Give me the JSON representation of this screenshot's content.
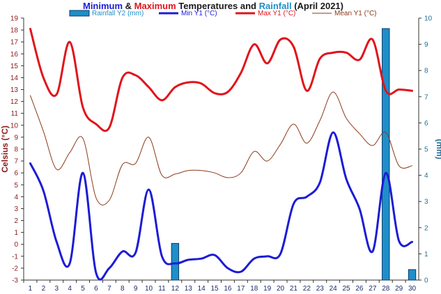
{
  "chart_data": {
    "type": "line",
    "title_parts": [
      {
        "text": "Minimum",
        "color": "#1c1cd6"
      },
      {
        "text": " & ",
        "color": "#1a1a1a"
      },
      {
        "text": "Maximum",
        "color": "#e0141c"
      },
      {
        "text": " Temperatures and ",
        "color": "#1a1a1a"
      },
      {
        "text": "Rainfall",
        "color": "#1f8fc9"
      },
      {
        "text": " (April 2021)",
        "color": "#1a1a1a"
      }
    ],
    "ylabel_left": "Celsius (°C)",
    "ylabel_right": "(mm)",
    "left_axis": {
      "min": -3,
      "max": 19,
      "step": 1,
      "color": "#8b1a1a"
    },
    "right_axis": {
      "min": 0,
      "max": 10,
      "step": 1,
      "color": "#1f6f9a"
    },
    "x": [
      1,
      2,
      3,
      4,
      5,
      6,
      7,
      8,
      9,
      10,
      11,
      12,
      13,
      14,
      15,
      16,
      17,
      18,
      19,
      20,
      21,
      22,
      23,
      24,
      25,
      26,
      27,
      28,
      29,
      30
    ],
    "x_color": "#1a2a6a",
    "legend_position": "top",
    "grid": false,
    "series": [
      {
        "name": "Rainfall Y2 (mm)",
        "kind": "bar",
        "axis": "right",
        "color": "#1f8fc9",
        "values": [
          0,
          0,
          0,
          0,
          0,
          0,
          0,
          0,
          0,
          0,
          0,
          1.4,
          0,
          0,
          0,
          0,
          0,
          0,
          0,
          0,
          0,
          0,
          0,
          0,
          0,
          0,
          0,
          9.6,
          0,
          0.4
        ]
      },
      {
        "name": "Min Y1 (°C)",
        "kind": "line",
        "axis": "left",
        "color": "#1c1cd6",
        "width": 3,
        "values": [
          6.8,
          4.5,
          0.2,
          -1.6,
          6.0,
          -2.4,
          -2.0,
          -0.6,
          -0.7,
          4.6,
          -1.0,
          -1.6,
          -1.3,
          -1.2,
          -0.9,
          -2.0,
          -2.3,
          -1.2,
          -1.0,
          -0.8,
          3.4,
          4.0,
          5.2,
          9.4,
          5.5,
          3.0,
          -0.6,
          6.0,
          0.3,
          0.2
        ]
      },
      {
        "name": "Max Y1 (°C)",
        "kind": "line",
        "axis": "left",
        "color": "#e0141c",
        "width": 3,
        "values": [
          18.1,
          14.0,
          12.6,
          17.0,
          11.5,
          10.1,
          9.8,
          14.0,
          14.2,
          13.2,
          12.1,
          13.2,
          13.6,
          13.5,
          12.7,
          12.8,
          14.4,
          16.8,
          15.2,
          17.2,
          16.6,
          12.9,
          15.6,
          16.1,
          16.1,
          15.5,
          17.2,
          12.9,
          13.0,
          12.9
        ]
      },
      {
        "name": "Mean Y1 (°C)",
        "kind": "line",
        "axis": "left",
        "color": "#8b3a1a",
        "width": 1,
        "values": [
          12.5,
          9.5,
          6.3,
          7.7,
          8.9,
          3.9,
          3.7,
          6.7,
          6.8,
          9.0,
          5.8,
          5.9,
          6.2,
          6.2,
          6.0,
          5.6,
          6.0,
          7.8,
          7.0,
          8.4,
          10.1,
          8.5,
          10.4,
          12.8,
          10.6,
          9.3,
          8.3,
          9.4,
          6.6,
          6.6
        ]
      }
    ]
  }
}
